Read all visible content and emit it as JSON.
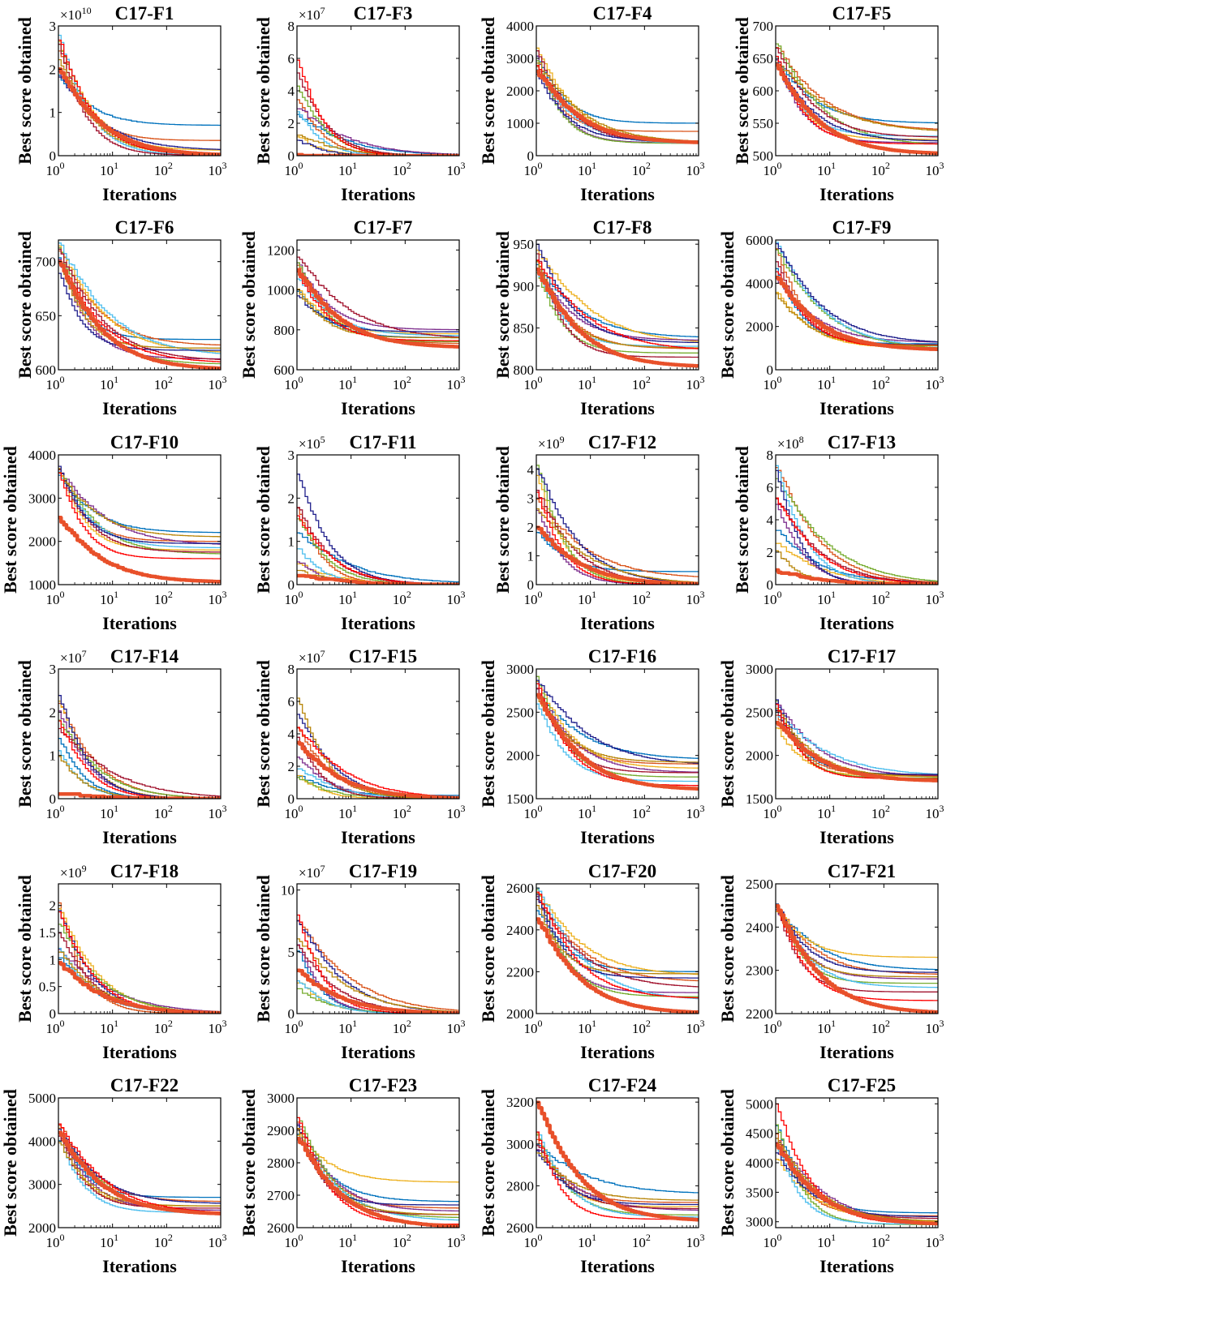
{
  "figure": {
    "ylabel": "Best score obtained",
    "xlabel": "Iterations",
    "x_scale": "log",
    "x_ticks": [
      "10^0",
      "10^1",
      "10^2",
      "10^3"
    ],
    "xlim": [
      1,
      1000
    ],
    "series_colors": [
      "#0072BD",
      "#D95319",
      "#EDB120",
      "#7E2F8E",
      "#77AC30",
      "#4DBEEE",
      "#A2142F",
      "#1F1F8C",
      "#B8860B",
      "#FF0000"
    ],
    "highlight_color": "#E8502A"
  },
  "chart_data": [
    {
      "type": "line",
      "title": "C17-F1",
      "y_multiplier": "×10^10",
      "y_ticks": [
        0,
        1,
        2,
        3
      ],
      "ylim": [
        0,
        3
      ],
      "start_range": [
        1.7,
        2.8
      ],
      "final_values": [
        0.7,
        0.35,
        0.12,
        0.02,
        0.01,
        0.005,
        0.01,
        0.12,
        0.02,
        0.01
      ],
      "highlight_start": 2.0,
      "highlight_final": 0.0
    },
    {
      "type": "line",
      "title": "C17-F3",
      "y_multiplier": "×10^7",
      "y_ticks": [
        0,
        2,
        4,
        6,
        8
      ],
      "ylim": [
        0,
        8
      ],
      "start_range": [
        0.2,
        6.5
      ],
      "final_values": [
        0,
        0,
        0,
        0,
        0,
        0,
        0,
        0,
        0,
        0
      ],
      "highlight_start": 0.1,
      "highlight_final": 0.0
    },
    {
      "type": "line",
      "title": "C17-F4",
      "y_ticks": [
        0,
        1000,
        2000,
        3000,
        4000
      ],
      "ylim": [
        0,
        4000
      ],
      "start_range": [
        2400,
        3500
      ],
      "final_values": [
        1000,
        750,
        420,
        400,
        380,
        360,
        400,
        450,
        410,
        390
      ],
      "highlight_start": 2600,
      "highlight_final": 380
    },
    {
      "type": "line",
      "title": "C17-F5",
      "y_ticks": [
        500,
        550,
        600,
        650,
        700
      ],
      "ylim": [
        500,
        700
      ],
      "start_range": [
        640,
        675
      ],
      "final_values": [
        550,
        538,
        525,
        520,
        515,
        530,
        528,
        522,
        535,
        518
      ],
      "highlight_start": 640,
      "highlight_final": 502
    },
    {
      "type": "line",
      "title": "C17-F6",
      "y_ticks": [
        600,
        650,
        700
      ],
      "ylim": [
        600,
        720
      ],
      "start_range": [
        690,
        720
      ],
      "final_values": [
        628,
        622,
        615,
        610,
        605,
        612,
        608,
        618,
        620,
        606
      ],
      "highlight_start": 700,
      "highlight_final": 600
    },
    {
      "type": "line",
      "title": "C17-F7",
      "y_ticks": [
        600,
        800,
        1000,
        1200
      ],
      "ylim": [
        600,
        1250
      ],
      "start_range": [
        970,
        1250
      ],
      "final_values": [
        760,
        730,
        780,
        800,
        740,
        770,
        750,
        790,
        760,
        745
      ],
      "highlight_start": 1100,
      "highlight_final": 710
    },
    {
      "type": "line",
      "title": "C17-F8",
      "y_ticks": [
        800,
        850,
        900,
        950
      ],
      "ylim": [
        800,
        955
      ],
      "start_range": [
        915,
        950
      ],
      "final_values": [
        838,
        825,
        830,
        835,
        820,
        828,
        815,
        832,
        826,
        822
      ],
      "highlight_start": 920,
      "highlight_final": 803
    },
    {
      "type": "line",
      "title": "C17-F9",
      "y_ticks": [
        0,
        2000,
        4000,
        6000
      ],
      "ylim": [
        0,
        6000
      ],
      "start_range": [
        3300,
        5900
      ],
      "final_values": [
        1200,
        1100,
        1000,
        1250,
        900,
        1000,
        1150,
        1200,
        1100,
        1000
      ],
      "highlight_start": 4300,
      "highlight_final": 900
    },
    {
      "type": "line",
      "title": "C17-F10",
      "y_ticks": [
        1000,
        2000,
        3000,
        4000
      ],
      "ylim": [
        1000,
        4000
      ],
      "start_range": [
        3500,
        3750
      ],
      "final_values": [
        2200,
        2000,
        1800,
        1900,
        1700,
        1850,
        1750,
        1950,
        2100,
        1600
      ],
      "highlight_start": 2550,
      "highlight_final": 1050
    },
    {
      "type": "line",
      "title": "C17-F11",
      "y_multiplier": "×10^5",
      "y_ticks": [
        0,
        1,
        2,
        3
      ],
      "ylim": [
        0,
        3
      ],
      "start_range": [
        0.2,
        2.8
      ],
      "final_values": [
        0.02,
        0.01,
        0,
        0,
        0,
        0,
        0,
        0.01,
        0,
        0
      ],
      "highlight_start": 0.25,
      "highlight_final": 0.0
    },
    {
      "type": "line",
      "title": "C17-F12",
      "y_multiplier": "×10^9",
      "y_ticks": [
        0,
        1,
        2,
        3,
        4
      ],
      "ylim": [
        0,
        4.5
      ],
      "start_range": [
        1.8,
        4.3
      ],
      "final_values": [
        0.45,
        0.2,
        0.05,
        0,
        0,
        0,
        0,
        0.02,
        0,
        0
      ],
      "highlight_start": 2.0,
      "highlight_final": 0.0
    },
    {
      "type": "line",
      "title": "C17-F13",
      "y_multiplier": "×10^8",
      "y_ticks": [
        0,
        2,
        4,
        6,
        8
      ],
      "ylim": [
        0,
        8
      ],
      "start_range": [
        2.0,
        7.8
      ],
      "final_values": [
        0.15,
        0.05,
        0,
        0,
        0,
        0,
        0,
        0,
        0,
        0
      ],
      "highlight_start": 0.9,
      "highlight_final": 0.0
    },
    {
      "type": "line",
      "title": "C17-F14",
      "y_multiplier": "×10^7",
      "y_ticks": [
        0,
        1,
        2,
        3
      ],
      "ylim": [
        0,
        3
      ],
      "start_range": [
        0.2,
        2.8
      ],
      "final_values": [
        0,
        0,
        0,
        0,
        0,
        0,
        0,
        0,
        0,
        0
      ],
      "highlight_start": 0.15,
      "highlight_final": 0.0
    },
    {
      "type": "line",
      "title": "C17-F15",
      "y_multiplier": "×10^7",
      "y_ticks": [
        0,
        2,
        4,
        6,
        8
      ],
      "ylim": [
        0,
        8
      ],
      "start_range": [
        1.0,
        6.3
      ],
      "final_values": [
        0.2,
        0,
        0,
        0,
        0,
        0,
        0,
        0,
        0,
        0
      ],
      "highlight_start": 3.5,
      "highlight_final": 0.0
    },
    {
      "type": "line",
      "title": "C17-F16",
      "y_ticks": [
        1500,
        2000,
        2500,
        3000
      ],
      "ylim": [
        1500,
        3000
      ],
      "start_range": [
        2600,
        2950
      ],
      "final_values": [
        1950,
        1900,
        1850,
        1800,
        1750,
        1700,
        1800,
        1880,
        1920,
        1650
      ],
      "highlight_start": 2700,
      "highlight_final": 1600
    },
    {
      "type": "line",
      "title": "C17-F17",
      "y_ticks": [
        1500,
        2000,
        2500,
        3000
      ],
      "ylim": [
        1500,
        3000
      ],
      "start_range": [
        2300,
        2750
      ],
      "final_values": [
        1780,
        1770,
        1760,
        1750,
        1740,
        1760,
        1770,
        1780,
        1750,
        1730
      ],
      "highlight_start": 2400,
      "highlight_final": 1700
    },
    {
      "type": "line",
      "title": "C17-F18",
      "y_multiplier": "×10^9",
      "y_ticks": [
        0,
        0.5,
        1,
        1.5,
        2
      ],
      "ylim": [
        0,
        2.4
      ],
      "start_range": [
        0.8,
        2.3
      ],
      "final_values": [
        0,
        0,
        0,
        0,
        0,
        0,
        0,
        0,
        0,
        0
      ],
      "highlight_start": 0.95,
      "highlight_final": 0.0
    },
    {
      "type": "line",
      "title": "C17-F19",
      "y_multiplier": "×10^7",
      "y_ticks": [
        0,
        5,
        10
      ],
      "ylim": [
        0,
        10.5
      ],
      "start_range": [
        2.0,
        10.0
      ],
      "final_values": [
        0,
        0,
        0,
        0,
        0,
        0,
        0,
        0,
        0,
        0
      ],
      "highlight_start": 3.5,
      "highlight_final": 0.0
    },
    {
      "type": "line",
      "title": "C17-F20",
      "y_ticks": [
        2000,
        2200,
        2400,
        2600
      ],
      "ylim": [
        2000,
        2620
      ],
      "start_range": [
        2500,
        2610
      ],
      "final_values": [
        2200,
        2150,
        2180,
        2100,
        2080,
        2060,
        2120,
        2170,
        2190,
        2070
      ],
      "highlight_start": 2460,
      "highlight_final": 2000
    },
    {
      "type": "line",
      "title": "C17-F21",
      "y_ticks": [
        2200,
        2300,
        2400,
        2500
      ],
      "ylim": [
        2200,
        2500
      ],
      "start_range": [
        2440,
        2460
      ],
      "final_values": [
        2300,
        2290,
        2330,
        2280,
        2270,
        2260,
        2250,
        2295,
        2285,
        2230
      ],
      "highlight_start": 2450,
      "highlight_final": 2200
    },
    {
      "type": "line",
      "title": "C17-F22",
      "y_ticks": [
        2000,
        3000,
        4000,
        5000
      ],
      "ylim": [
        2000,
        5000
      ],
      "start_range": [
        3900,
        4500
      ],
      "final_values": [
        2700,
        2600,
        2500,
        2400,
        2300,
        2350,
        2450,
        2550,
        2500,
        2320
      ],
      "highlight_start": 4200,
      "highlight_final": 2300
    },
    {
      "type": "line",
      "title": "C17-F23",
      "y_ticks": [
        2600,
        2700,
        2800,
        2900,
        3000
      ],
      "ylim": [
        2600,
        3000
      ],
      "start_range": [
        2880,
        2950
      ],
      "final_values": [
        2680,
        2660,
        2740,
        2650,
        2630,
        2620,
        2640,
        2670,
        2640,
        2610
      ],
      "highlight_start": 2880,
      "highlight_final": 2600
    },
    {
      "type": "line",
      "title": "C17-F24",
      "y_ticks": [
        2600,
        2800,
        3000,
        3200
      ],
      "ylim": [
        2600,
        3220
      ],
      "start_range": [
        2950,
        3080
      ],
      "final_values": [
        2760,
        2720,
        2700,
        2680,
        2660,
        2650,
        2690,
        2710,
        2730,
        2640
      ],
      "highlight_start": 3200,
      "highlight_final": 2630
    },
    {
      "type": "line",
      "title": "C17-F25",
      "y_ticks": [
        3000,
        3500,
        4000,
        4500,
        5000
      ],
      "ylim": [
        2900,
        5100
      ],
      "start_range": [
        4000,
        5100
      ],
      "final_values": [
        3150,
        3100,
        3000,
        2950,
        2950,
        2960,
        3050,
        3080,
        3000,
        2950
      ],
      "highlight_start": 4300,
      "highlight_final": 2950
    }
  ]
}
